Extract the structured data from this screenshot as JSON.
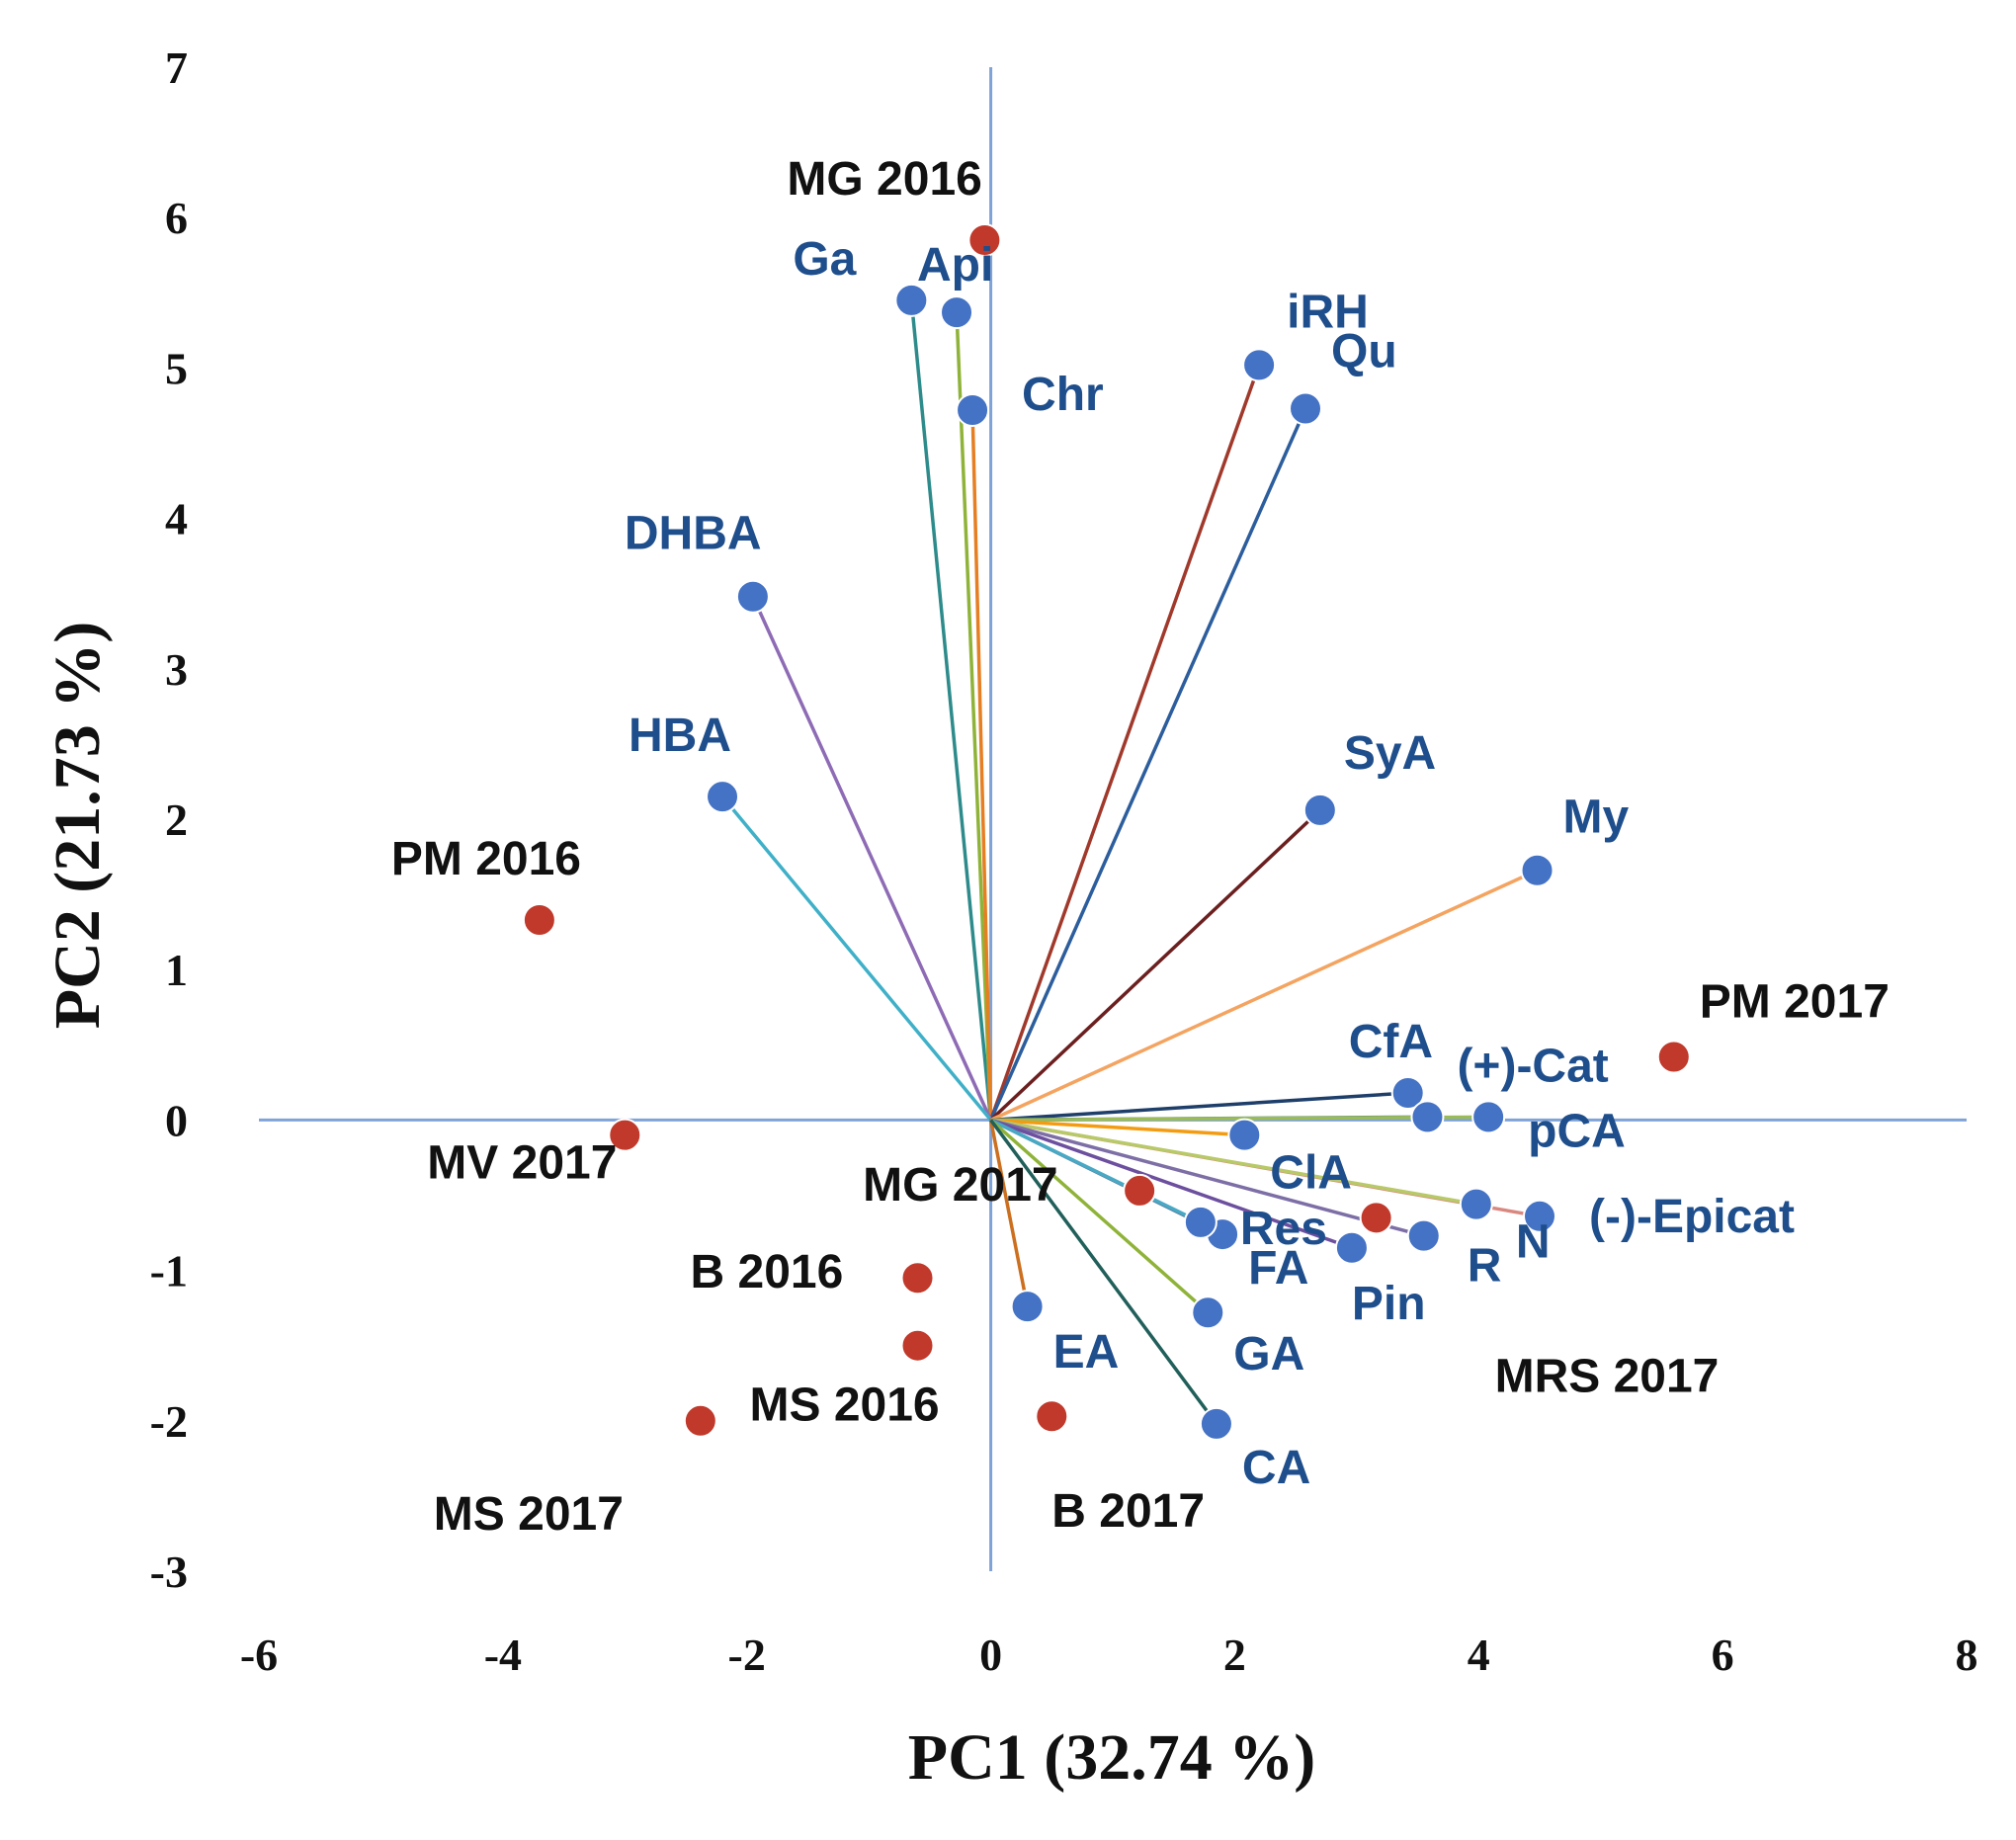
{
  "chart_data": {
    "type": "scatter",
    "subtype": "pca-biplot",
    "xlabel": "PC1 (32.74 %)",
    "ylabel": "PC2 (21.73 %)",
    "xlim": [
      -6,
      8
    ],
    "ylim": [
      -3,
      7
    ],
    "x_ticks": [
      -6,
      -4,
      -2,
      0,
      2,
      4,
      6,
      8
    ],
    "y_ticks": [
      -3,
      -2,
      -1,
      0,
      1,
      2,
      3,
      4,
      5,
      6,
      7
    ],
    "grid": false,
    "colors": {
      "variable_point": "#4472c4",
      "observation_point": "#c0392b",
      "axis_line": "#7fa3d7",
      "variable_label": "#1f4e8c",
      "observation_label": "#111111"
    },
    "variables": [
      {
        "name": "Ga",
        "x": -0.65,
        "y": 5.45,
        "color": "#2e8b8b"
      },
      {
        "name": "Api",
        "x": -0.28,
        "y": 5.37,
        "color": "#8fb339"
      },
      {
        "name": "Chr",
        "x": -0.15,
        "y": 4.72,
        "color": "#e67e22"
      },
      {
        "name": "iRH",
        "x": 2.2,
        "y": 5.02,
        "color": "#a0392b"
      },
      {
        "name": "Qu",
        "x": 2.58,
        "y": 4.73,
        "color": "#2c5d9c"
      },
      {
        "name": "DHBA",
        "x": -1.95,
        "y": 3.48,
        "color": "#8e6bb5"
      },
      {
        "name": "HBA",
        "x": -2.2,
        "y": 2.15,
        "color": "#3fb0c8"
      },
      {
        "name": "SyA",
        "x": 2.7,
        "y": 2.06,
        "color": "#6b1f1f"
      },
      {
        "name": "My",
        "x": 4.48,
        "y": 1.66,
        "color": "#f4a460"
      },
      {
        "name": "CfA",
        "x": 3.42,
        "y": 0.18,
        "color": "#1f3f6b"
      },
      {
        "name": "(+)-Cat",
        "x": 3.58,
        "y": 0.02,
        "color": "#4a7c8c"
      },
      {
        "name": "pCA",
        "x": 4.08,
        "y": 0.02,
        "color": "#9bbb59"
      },
      {
        "name": "ClA",
        "x": 2.08,
        "y": -0.1,
        "color": "#f39c12"
      },
      {
        "name": "(-)-Epicat",
        "x": 4.5,
        "y": -0.64,
        "color": "#d98880"
      },
      {
        "name": "N",
        "x": 3.98,
        "y": -0.56,
        "color": "#b8c968"
      },
      {
        "name": "R",
        "x": 3.55,
        "y": -0.77,
        "color": "#7d6fa6"
      },
      {
        "name": "Pin",
        "x": 2.96,
        "y": -0.85,
        "color": "#6c4f9e"
      },
      {
        "name": "FA",
        "x": 1.9,
        "y": -0.76,
        "color": "#5d7fa0"
      },
      {
        "name": "Res",
        "x": 1.72,
        "y": -0.68,
        "color": "#48a9c5"
      },
      {
        "name": "GA",
        "x": 1.78,
        "y": -1.28,
        "color": "#8fb339"
      },
      {
        "name": "EA",
        "x": 0.3,
        "y": -1.24,
        "color": "#cc6f1f"
      },
      {
        "name": "CA",
        "x": 1.85,
        "y": -2.02,
        "color": "#215f5a"
      }
    ],
    "observations": [
      {
        "name": "MG 2016",
        "x": -0.05,
        "y": 5.85
      },
      {
        "name": "PM 2016",
        "x": -3.7,
        "y": 1.33
      },
      {
        "name": "MV 2017",
        "x": -3.0,
        "y": -0.1
      },
      {
        "name": "PM 2017",
        "x": 5.6,
        "y": 0.42
      },
      {
        "name": "MG 2017",
        "x": 1.22,
        "y": -0.47
      },
      {
        "name": "MRS 2017",
        "x": 3.16,
        "y": -0.65
      },
      {
        "name": "B 2016",
        "x": -0.6,
        "y": -1.05
      },
      {
        "name": "MS 2016",
        "x": -0.6,
        "y": -1.5
      },
      {
        "name": "MS 2017",
        "x": -2.38,
        "y": -2.0
      },
      {
        "name": "B 2017",
        "x": 0.5,
        "y": -1.97
      }
    ]
  }
}
